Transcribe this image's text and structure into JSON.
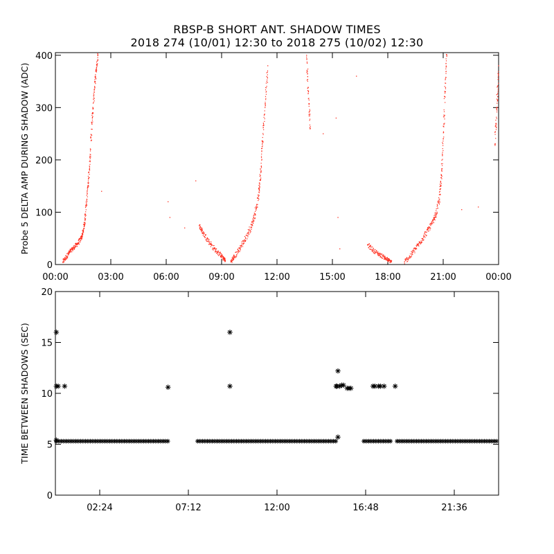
{
  "title": {
    "line1": "RBSP-B SHORT ANT. SHADOW TIMES",
    "line2": "2018 274 (10/01) 12:30 to 2018 275 (10/02) 12:30"
  },
  "colors": {
    "amp_points": "#ff2a1a",
    "gap_points": "#000000",
    "axes": "#000000",
    "background": "#ffffff"
  },
  "chart_data": [
    {
      "type": "scatter",
      "ylabel": "Probe 5 DELTA AMP DURING SHADOW (ADC)",
      "xlabel": "",
      "x_unit": "hours",
      "xlim": [
        0,
        24
      ],
      "ylim": [
        0,
        405
      ],
      "xticks": [
        {
          "value": 0,
          "label": "00:00"
        },
        {
          "value": 3,
          "label": "03:00"
        },
        {
          "value": 6,
          "label": "06:00"
        },
        {
          "value": 9,
          "label": "09:00"
        },
        {
          "value": 12,
          "label": "12:00"
        },
        {
          "value": 15,
          "label": "15:00"
        },
        {
          "value": 18,
          "label": "18:00"
        },
        {
          "value": 21,
          "label": "21:00"
        },
        {
          "value": 24,
          "label": "00:00"
        }
      ],
      "yticks": [
        {
          "value": 0,
          "label": "0"
        },
        {
          "value": 100,
          "label": "100"
        },
        {
          "value": 200,
          "label": "200"
        },
        {
          "value": 300,
          "label": "300"
        },
        {
          "value": 400,
          "label": "400"
        }
      ],
      "point_color": "red",
      "series": [
        {
          "x": [
            0.4,
            0.6,
            0.8,
            1.0,
            1.2,
            1.4,
            1.5,
            1.6,
            1.7,
            1.8,
            1.9,
            2.0,
            2.1,
            2.2,
            2.3
          ],
          "y": [
            5,
            15,
            25,
            32,
            40,
            50,
            62,
            85,
            125,
            165,
            220,
            280,
            330,
            370,
            400
          ]
        },
        {
          "x": [
            7.8,
            8.0,
            8.3,
            8.6,
            8.9,
            9.1,
            9.2
          ],
          "y": [
            75,
            60,
            45,
            30,
            20,
            12,
            8
          ]
        },
        {
          "x": [
            9.5,
            9.7,
            10.0,
            10.3,
            10.6,
            10.8,
            11.0,
            11.1,
            11.2,
            11.35,
            11.5
          ],
          "y": [
            5,
            15,
            32,
            50,
            72,
            95,
            130,
            170,
            230,
            300,
            380
          ]
        },
        {
          "x": [
            13.6,
            13.7,
            13.8
          ],
          "y": [
            400,
            330,
            260
          ]
        },
        {
          "x": [
            16.9,
            17.2,
            17.5,
            17.8,
            18.0,
            18.2
          ],
          "y": [
            38,
            28,
            20,
            14,
            9,
            5
          ]
        },
        {
          "x": [
            18.9,
            19.2,
            19.5,
            19.8,
            20.1,
            20.4,
            20.6,
            20.8,
            20.9,
            21.0,
            21.1,
            21.2
          ],
          "y": [
            5,
            15,
            30,
            45,
            62,
            78,
            95,
            125,
            170,
            240,
            330,
            400
          ]
        },
        {
          "x": [
            23.8,
            23.9,
            24.0
          ],
          "y": [
            230,
            300,
            380
          ]
        },
        {
          "x": [
            2.5,
            6.1,
            6.2,
            7.0,
            7.6,
            14.5,
            15.2,
            15.3,
            15.4,
            16.3,
            22.0,
            22.9
          ],
          "y": [
            140,
            120,
            90,
            70,
            160,
            250,
            280,
            90,
            30,
            360,
            105,
            110
          ]
        }
      ]
    },
    {
      "type": "scatter",
      "ylabel": "TIME BETWEEN SHADOWS (SEC)",
      "xlabel": "",
      "x_unit": "hours",
      "xlim": [
        0,
        24
      ],
      "ylim": [
        0,
        20
      ],
      "xticks": [
        {
          "value": 2.4,
          "label": "02:24"
        },
        {
          "value": 7.2,
          "label": "07:12"
        },
        {
          "value": 12.0,
          "label": "12:00"
        },
        {
          "value": 16.8,
          "label": "16:48"
        },
        {
          "value": 21.6,
          "label": "21:36"
        }
      ],
      "yticks": [
        {
          "value": 0,
          "label": "0"
        },
        {
          "value": 5,
          "label": "5"
        },
        {
          "value": 10,
          "label": "10"
        },
        {
          "value": 15,
          "label": "15"
        },
        {
          "value": 20,
          "label": "20"
        }
      ],
      "point_color": "black",
      "marker": "asterisk",
      "baseline": {
        "y": 5.3,
        "segments": [
          [
            0.05,
            6.2
          ],
          [
            7.7,
            15.3
          ],
          [
            16.7,
            18.2
          ],
          [
            18.5,
            24
          ]
        ]
      },
      "points": {
        "x": [
          0.05,
          0.05,
          0.15,
          0.5,
          6.1,
          9.45,
          9.45,
          15.2,
          15.25,
          15.3,
          15.4,
          15.5,
          15.6,
          15.8,
          15.9,
          16.0,
          17.2,
          17.3,
          17.5,
          17.6,
          17.8,
          18.4,
          0.05,
          15.3
        ],
        "y": [
          16.0,
          10.7,
          10.7,
          10.7,
          10.6,
          16.0,
          10.7,
          10.7,
          10.7,
          12.2,
          10.7,
          10.8,
          10.8,
          10.5,
          10.5,
          10.5,
          10.7,
          10.7,
          10.7,
          10.7,
          10.7,
          10.7,
          5.4,
          5.7
        ]
      }
    }
  ]
}
